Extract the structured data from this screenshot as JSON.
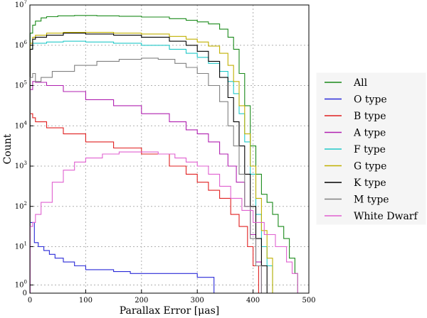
{
  "chart_data": {
    "type": "line",
    "style": "step-histogram",
    "title": "",
    "xlabel": "Parallax Error [μas]",
    "ylabel": "Count",
    "xlim": [
      0,
      500
    ],
    "ylim_log10": [
      0,
      7
    ],
    "y_scale": "symlog",
    "grid": true,
    "legend_position": "right",
    "x_ticks": [
      "0",
      "100",
      "200",
      "300",
      "400",
      "500"
    ],
    "y_ticks": [
      {
        "base": "0",
        "exp": ""
      },
      {
        "base": "10",
        "exp": "0"
      },
      {
        "base": "10",
        "exp": "1"
      },
      {
        "base": "10",
        "exp": "2"
      },
      {
        "base": "10",
        "exp": "3"
      },
      {
        "base": "10",
        "exp": "4"
      },
      {
        "base": "10",
        "exp": "5"
      },
      {
        "base": "10",
        "exp": "6"
      },
      {
        "base": "10",
        "exp": "7"
      }
    ],
    "series": [
      {
        "name": "All",
        "color": "#1a8a1a",
        "x": [
          2,
          5,
          10,
          20,
          30,
          50,
          80,
          120,
          160,
          200,
          250,
          280,
          300,
          320,
          340,
          355,
          365,
          375,
          385,
          395,
          405,
          415,
          425,
          435,
          445,
          455,
          465,
          475,
          480
        ],
        "log_counts": [
          6.3,
          6.5,
          6.6,
          6.68,
          6.71,
          6.73,
          6.74,
          6.73,
          6.72,
          6.7,
          6.66,
          6.62,
          6.58,
          6.53,
          6.4,
          6.2,
          5.9,
          5.3,
          4.5,
          3.5,
          2.8,
          2.3,
          2.1,
          1.8,
          1.5,
          1.2,
          0.7,
          0.3,
          0.1
        ]
      },
      {
        "name": "O type",
        "color": "#2a2ad8",
        "x": [
          2,
          8,
          15,
          25,
          35,
          45,
          60,
          80,
          100,
          120,
          150,
          180,
          200,
          230,
          260,
          280,
          300,
          320,
          330
        ],
        "log_counts": [
          1.6,
          1.1,
          1.0,
          0.9,
          0.8,
          0.7,
          0.6,
          0.5,
          0.4,
          0.4,
          0.35,
          0.3,
          0.3,
          0.3,
          0.3,
          0.3,
          0.2,
          0.2,
          0.1
        ]
      },
      {
        "name": "B type",
        "color": "#e02020",
        "x": [
          2,
          5,
          10,
          30,
          60,
          100,
          150,
          200,
          250,
          280,
          300,
          320,
          340,
          360,
          375,
          390,
          400,
          410
        ],
        "log_counts": [
          4.3,
          4.2,
          4.1,
          3.95,
          3.8,
          3.6,
          3.45,
          3.3,
          3.0,
          2.8,
          2.6,
          2.4,
          2.2,
          1.8,
          1.5,
          1.0,
          0.5,
          0.1
        ]
      },
      {
        "name": "A type",
        "color": "#b020b0",
        "x": [
          2,
          5,
          10,
          30,
          60,
          100,
          150,
          200,
          250,
          280,
          300,
          320,
          340,
          355,
          370,
          385,
          395,
          405,
          415
        ],
        "log_counts": [
          4.9,
          5.1,
          5.08,
          5.0,
          4.85,
          4.65,
          4.5,
          4.3,
          4.1,
          3.9,
          3.8,
          3.6,
          3.3,
          3.0,
          2.6,
          2.0,
          1.3,
          0.6,
          0.1
        ]
      },
      {
        "name": "F type",
        "color": "#20c8c8",
        "x": [
          2,
          5,
          10,
          30,
          60,
          100,
          150,
          200,
          250,
          280,
          300,
          320,
          340,
          355,
          365,
          375,
          385,
          395,
          405,
          415,
          425,
          435
        ],
        "log_counts": [
          5.9,
          6.05,
          6.05,
          6.08,
          6.1,
          6.08,
          6.05,
          6.0,
          5.9,
          5.8,
          5.7,
          5.55,
          5.35,
          5.1,
          4.8,
          4.3,
          3.6,
          2.8,
          1.8,
          1.0,
          0.5,
          0.2
        ]
      },
      {
        "name": "G type",
        "color": "#c0b000",
        "x": [
          2,
          5,
          10,
          30,
          60,
          100,
          150,
          200,
          250,
          280,
          300,
          320,
          340,
          355,
          365,
          375,
          385,
          395,
          405,
          415,
          425,
          435
        ],
        "log_counts": [
          6.05,
          6.2,
          6.25,
          6.3,
          6.32,
          6.32,
          6.3,
          6.28,
          6.22,
          6.15,
          6.08,
          5.98,
          5.8,
          5.5,
          5.1,
          4.5,
          3.8,
          3.0,
          2.2,
          1.4,
          0.7,
          0.2
        ]
      },
      {
        "name": "K type",
        "color": "#000000",
        "x": [
          2,
          5,
          10,
          30,
          60,
          100,
          150,
          200,
          250,
          280,
          300,
          320,
          340,
          355,
          365,
          375,
          385,
          395,
          405,
          415,
          425
        ],
        "log_counts": [
          5.9,
          6.15,
          6.2,
          6.25,
          6.3,
          6.28,
          6.25,
          6.2,
          6.1,
          6.0,
          5.85,
          5.6,
          5.2,
          4.7,
          4.1,
          3.5,
          2.8,
          2.0,
          1.2,
          0.5,
          0.1
        ]
      },
      {
        "name": "M type",
        "color": "#808080",
        "x": [
          2,
          5,
          10,
          20,
          40,
          80,
          120,
          160,
          200,
          230,
          260,
          280,
          300,
          320,
          340,
          355,
          365,
          375,
          385,
          395,
          405,
          415
        ],
        "log_counts": [
          5.2,
          5.3,
          5.1,
          5.2,
          5.35,
          5.5,
          5.6,
          5.65,
          5.68,
          5.65,
          5.55,
          5.45,
          5.3,
          5.0,
          4.6,
          4.0,
          3.5,
          2.8,
          2.0,
          1.2,
          0.5,
          0.1
        ]
      },
      {
        "name": "White Dwarf",
        "color": "#e060d0",
        "x": [
          2,
          5,
          10,
          20,
          40,
          60,
          80,
          100,
          130,
          160,
          200,
          230,
          260,
          280,
          300,
          320,
          340,
          360,
          380,
          400,
          420,
          440,
          460,
          470,
          480
        ],
        "log_counts": [
          1.5,
          1.6,
          1.8,
          2.1,
          2.6,
          2.9,
          3.1,
          3.2,
          3.3,
          3.35,
          3.35,
          3.3,
          3.2,
          3.1,
          3.0,
          2.8,
          2.5,
          2.2,
          1.9,
          1.6,
          1.3,
          1.0,
          0.6,
          0.3,
          0.1
        ]
      }
    ]
  }
}
